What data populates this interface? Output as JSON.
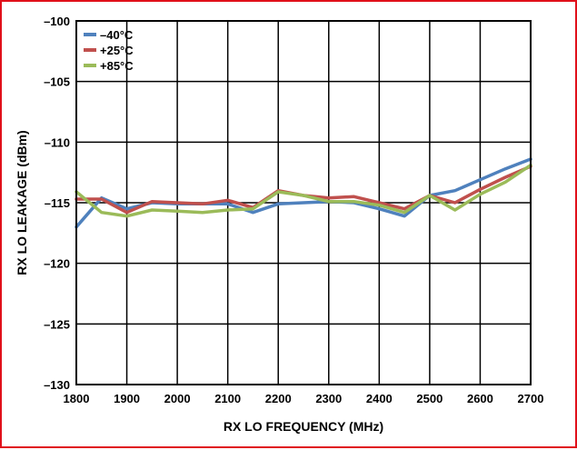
{
  "chart_data": {
    "type": "line",
    "title": "",
    "xlabel": "RX LO FREQUENCY (MHz)",
    "ylabel": "RX LO LEAKAGE (dBm)",
    "xlim": [
      1800,
      2700
    ],
    "ylim": [
      -130,
      -100
    ],
    "xticks": [
      1800,
      1900,
      2000,
      2100,
      2200,
      2300,
      2400,
      2500,
      2600,
      2700
    ],
    "yticks": [
      -130,
      -125,
      -120,
      -115,
      -110,
      -105,
      -100
    ],
    "xtick_labels": [
      "1800",
      "1900",
      "2000",
      "2100",
      "2200",
      "2300",
      "2400",
      "2500",
      "2600",
      "2700"
    ],
    "ytick_labels": [
      "–130",
      "–125",
      "–120",
      "–115",
      "–110",
      "–105",
      "–100"
    ],
    "grid": true,
    "legend_position": "top-left",
    "series": [
      {
        "name": "–40°C",
        "color": "#4f81bd",
        "x": [
          1800,
          1850,
          1900,
          1950,
          2000,
          2050,
          2100,
          2150,
          2200,
          2250,
          2300,
          2350,
          2400,
          2450,
          2500,
          2550,
          2600,
          2650,
          2700
        ],
        "y": [
          -117.0,
          -114.6,
          -115.5,
          -115.0,
          -115.1,
          -115.1,
          -115.1,
          -115.8,
          -115.1,
          -115.0,
          -114.9,
          -115.0,
          -115.5,
          -116.1,
          -114.4,
          -114.0,
          -113.1,
          -112.2,
          -111.4
        ]
      },
      {
        "name": "+25°C",
        "color": "#c0504d",
        "x": [
          1800,
          1850,
          1900,
          1950,
          2000,
          2050,
          2100,
          2150,
          2200,
          2250,
          2300,
          2350,
          2400,
          2450,
          2500,
          2550,
          2600,
          2650,
          2700
        ],
        "y": [
          -114.7,
          -114.7,
          -115.8,
          -114.9,
          -115.0,
          -115.1,
          -114.8,
          -115.4,
          -114.0,
          -114.4,
          -114.6,
          -114.5,
          -115.0,
          -115.5,
          -114.4,
          -115.0,
          -113.9,
          -112.9,
          -112.0
        ]
      },
      {
        "name": "+85°C",
        "color": "#9bbb59",
        "x": [
          1800,
          1850,
          1900,
          1950,
          2000,
          2050,
          2100,
          2150,
          2200,
          2250,
          2300,
          2350,
          2400,
          2450,
          2500,
          2550,
          2600,
          2650,
          2700
        ],
        "y": [
          -114.1,
          -115.8,
          -116.1,
          -115.6,
          -115.7,
          -115.8,
          -115.6,
          -115.5,
          -114.1,
          -114.4,
          -114.9,
          -114.9,
          -115.2,
          -115.8,
          -114.4,
          -115.6,
          -114.3,
          -113.3,
          -111.9
        ]
      }
    ]
  }
}
